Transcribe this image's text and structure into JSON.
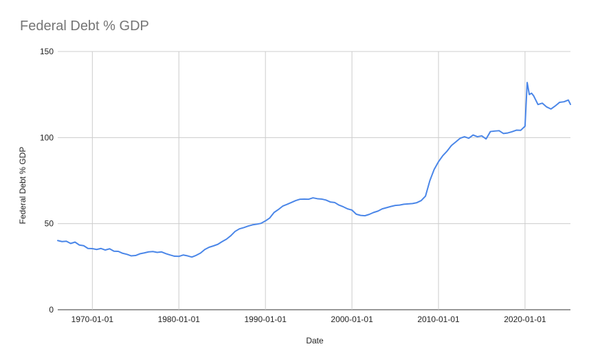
{
  "chart_data": {
    "type": "line",
    "title": "Federal Debt % GDP",
    "xlabel": "Date",
    "ylabel": "Federal Debt % GDP",
    "ylim": [
      0,
      150
    ],
    "xlim": [
      "1966-01-01",
      "2025-04-01"
    ],
    "yticks": [
      "0",
      "50",
      "100",
      "150"
    ],
    "xticks": [
      "1970-01-01",
      "1980-01-01",
      "1990-01-01",
      "2000-01-01",
      "2010-01-01",
      "2020-01-01"
    ],
    "grid": true,
    "legend": "none",
    "series": [
      {
        "color": "#4a86e8",
        "points": [
          [
            "1966-01-01",
            40.2
          ],
          [
            "1966-07-01",
            39.6
          ],
          [
            "1967-01-01",
            39.8
          ],
          [
            "1967-07-01",
            38.5
          ],
          [
            "1968-01-01",
            39.3
          ],
          [
            "1968-07-01",
            37.6
          ],
          [
            "1969-01-01",
            37.2
          ],
          [
            "1969-07-01",
            35.6
          ],
          [
            "1970-01-01",
            35.5
          ],
          [
            "1970-07-01",
            35.0
          ],
          [
            "1971-01-01",
            35.6
          ],
          [
            "1971-07-01",
            34.7
          ],
          [
            "1972-01-01",
            35.4
          ],
          [
            "1972-07-01",
            34.0
          ],
          [
            "1973-01-01",
            33.9
          ],
          [
            "1973-07-01",
            32.8
          ],
          [
            "1974-01-01",
            32.2
          ],
          [
            "1974-07-01",
            31.3
          ],
          [
            "1975-01-01",
            31.5
          ],
          [
            "1975-07-01",
            32.5
          ],
          [
            "1976-01-01",
            33.0
          ],
          [
            "1976-07-01",
            33.6
          ],
          [
            "1977-01-01",
            33.8
          ],
          [
            "1977-07-01",
            33.3
          ],
          [
            "1978-01-01",
            33.6
          ],
          [
            "1978-07-01",
            32.6
          ],
          [
            "1979-01-01",
            31.8
          ],
          [
            "1979-07-01",
            31.1
          ],
          [
            "1980-01-01",
            31.0
          ],
          [
            "1980-07-01",
            31.8
          ],
          [
            "1981-01-01",
            31.3
          ],
          [
            "1981-07-01",
            30.6
          ],
          [
            "1982-01-01",
            31.6
          ],
          [
            "1982-07-01",
            32.9
          ],
          [
            "1983-01-01",
            35.0
          ],
          [
            "1983-07-01",
            36.3
          ],
          [
            "1984-01-01",
            37.1
          ],
          [
            "1984-07-01",
            38.0
          ],
          [
            "1985-01-01",
            39.6
          ],
          [
            "1985-07-01",
            41.0
          ],
          [
            "1986-01-01",
            43.0
          ],
          [
            "1986-07-01",
            45.5
          ],
          [
            "1987-01-01",
            47.0
          ],
          [
            "1987-07-01",
            47.7
          ],
          [
            "1988-01-01",
            48.6
          ],
          [
            "1988-07-01",
            49.3
          ],
          [
            "1989-01-01",
            49.7
          ],
          [
            "1989-07-01",
            50.2
          ],
          [
            "1990-01-01",
            51.6
          ],
          [
            "1990-07-01",
            53.3
          ],
          [
            "1991-01-01",
            56.5
          ],
          [
            "1991-07-01",
            58.2
          ],
          [
            "1992-01-01",
            60.2
          ],
          [
            "1992-07-01",
            61.2
          ],
          [
            "1993-01-01",
            62.3
          ],
          [
            "1993-07-01",
            63.4
          ],
          [
            "1994-01-01",
            64.2
          ],
          [
            "1994-07-01",
            64.3
          ],
          [
            "1995-01-01",
            64.2
          ],
          [
            "1995-07-01",
            65.0
          ],
          [
            "1996-01-01",
            64.5
          ],
          [
            "1996-07-01",
            64.3
          ],
          [
            "1997-01-01",
            63.7
          ],
          [
            "1997-07-01",
            62.6
          ],
          [
            "1998-01-01",
            62.3
          ],
          [
            "1998-07-01",
            60.8
          ],
          [
            "1999-01-01",
            59.8
          ],
          [
            "1999-07-01",
            58.6
          ],
          [
            "2000-01-01",
            57.9
          ],
          [
            "2000-07-01",
            55.5
          ],
          [
            "2001-01-01",
            54.8
          ],
          [
            "2001-07-01",
            54.6
          ],
          [
            "2002-01-01",
            55.4
          ],
          [
            "2002-07-01",
            56.5
          ],
          [
            "2003-01-01",
            57.3
          ],
          [
            "2003-07-01",
            58.6
          ],
          [
            "2004-01-01",
            59.3
          ],
          [
            "2004-07-01",
            60.0
          ],
          [
            "2005-01-01",
            60.6
          ],
          [
            "2005-07-01",
            60.8
          ],
          [
            "2006-01-01",
            61.3
          ],
          [
            "2006-07-01",
            61.5
          ],
          [
            "2007-01-01",
            61.7
          ],
          [
            "2007-07-01",
            62.2
          ],
          [
            "2008-01-01",
            63.4
          ],
          [
            "2008-07-01",
            66.0
          ],
          [
            "2009-01-01",
            75.0
          ],
          [
            "2009-07-01",
            81.5
          ],
          [
            "2010-01-01",
            86.0
          ],
          [
            "2010-07-01",
            89.5
          ],
          [
            "2011-01-01",
            92.2
          ],
          [
            "2011-07-01",
            95.4
          ],
          [
            "2012-01-01",
            97.5
          ],
          [
            "2012-07-01",
            99.6
          ],
          [
            "2013-01-01",
            100.5
          ],
          [
            "2013-07-01",
            99.6
          ],
          [
            "2014-01-01",
            101.5
          ],
          [
            "2014-07-01",
            100.5
          ],
          [
            "2015-01-01",
            101.0
          ],
          [
            "2015-07-01",
            99.2
          ],
          [
            "2016-01-01",
            103.5
          ],
          [
            "2016-07-01",
            103.8
          ],
          [
            "2017-01-01",
            104.0
          ],
          [
            "2017-07-01",
            102.4
          ],
          [
            "2018-01-01",
            102.7
          ],
          [
            "2018-07-01",
            103.4
          ],
          [
            "2019-01-01",
            104.3
          ],
          [
            "2019-07-01",
            104.2
          ],
          [
            "2020-01-01",
            106.6
          ],
          [
            "2020-04-01",
            132.0
          ],
          [
            "2020-07-01",
            125.0
          ],
          [
            "2020-10-01",
            125.8
          ],
          [
            "2021-01-01",
            124.2
          ],
          [
            "2021-07-01",
            119.2
          ],
          [
            "2022-01-01",
            120.0
          ],
          [
            "2022-07-01",
            117.8
          ],
          [
            "2023-01-01",
            116.6
          ],
          [
            "2023-07-01",
            118.4
          ],
          [
            "2024-01-01",
            120.5
          ],
          [
            "2024-07-01",
            120.8
          ],
          [
            "2025-01-01",
            121.8
          ],
          [
            "2025-04-01",
            119.3
          ]
        ]
      }
    ]
  }
}
